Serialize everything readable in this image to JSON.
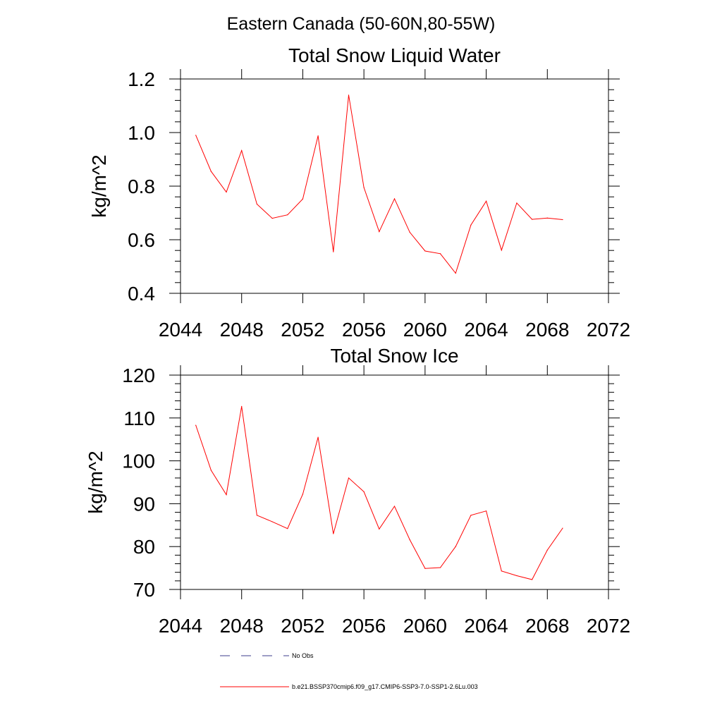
{
  "figure": {
    "title": "Eastern Canada (50-60N,80-55W)"
  },
  "chart_data": [
    {
      "type": "line",
      "title": "Total Snow Liquid Water",
      "xlabel": "",
      "ylabel": "kg/m^2",
      "xlim": [
        2044,
        2072
      ],
      "ylim": [
        0.4,
        1.2
      ],
      "xticks": [
        2044,
        2048,
        2052,
        2056,
        2060,
        2064,
        2068,
        2072
      ],
      "xtick_labels": [
        "2044",
        "2048",
        "2052",
        "2056",
        "2060",
        "2064",
        "2068",
        "2072"
      ],
      "yticks": [
        0.4,
        0.6,
        0.8,
        1.0,
        1.2
      ],
      "ytick_labels": [
        "0.4",
        "0.6",
        "0.8",
        "1.0",
        "1.2"
      ],
      "grid": false,
      "x": [
        2045,
        2046,
        2047,
        2048,
        2049,
        2050,
        2051,
        2052,
        2053,
        2054,
        2055,
        2056,
        2057,
        2058,
        2059,
        2060,
        2061,
        2062,
        2063,
        2064,
        2065,
        2066,
        2067,
        2068,
        2069
      ],
      "series": [
        {
          "name": "b.e21.BSSP370cmip6.f09_g17.CMIP6-SSP3-7.0-SSP1-2.6Lu.003",
          "color": "#ff0000",
          "values": [
            0.99,
            0.855,
            0.778,
            0.933,
            0.733,
            0.68,
            0.693,
            0.752,
            0.988,
            0.555,
            1.14,
            0.795,
            0.63,
            0.753,
            0.628,
            0.558,
            0.548,
            0.475,
            0.655,
            0.744,
            0.561,
            0.737,
            0.676,
            0.681,
            0.675
          ]
        }
      ]
    },
    {
      "type": "line",
      "title": "Total Snow Ice",
      "xlabel": "",
      "ylabel": "kg/m^2",
      "xlim": [
        2044,
        2072
      ],
      "ylim": [
        70,
        120
      ],
      "xticks": [
        2044,
        2048,
        2052,
        2056,
        2060,
        2064,
        2068,
        2072
      ],
      "xtick_labels": [
        "2044",
        "2048",
        "2052",
        "2056",
        "2060",
        "2064",
        "2068",
        "2072"
      ],
      "yticks": [
        70,
        80,
        90,
        100,
        110,
        120
      ],
      "ytick_labels": [
        "70",
        "80",
        "90",
        "100",
        "110",
        "120"
      ],
      "grid": false,
      "x": [
        2045,
        2046,
        2047,
        2048,
        2049,
        2050,
        2051,
        2052,
        2053,
        2054,
        2055,
        2056,
        2057,
        2058,
        2059,
        2060,
        2061,
        2062,
        2063,
        2064,
        2065,
        2066,
        2067,
        2068,
        2069
      ],
      "series": [
        {
          "name": "b.e21.BSSP370cmip6.f09_g17.CMIP6-SSP3-7.0-SSP1-2.6Lu.003",
          "color": "#ff0000",
          "values": [
            108.3,
            97.8,
            92.1,
            112.7,
            87.3,
            85.8,
            84.2,
            92.2,
            105.5,
            83.0,
            96.0,
            92.8,
            84.1,
            89.4,
            81.6,
            74.9,
            75.1,
            80.0,
            87.3,
            88.3,
            74.3,
            73.2,
            72.3,
            79.2,
            84.3
          ]
        }
      ]
    }
  ],
  "legend": {
    "placement": "bottom",
    "entries": [
      {
        "label": "No Obs",
        "color": "#3c3c8c",
        "style": "dashed"
      },
      {
        "label": "b.e21.BSSP370cmip6.f09_g17.CMIP6-SSP3-7.0-SSP1-2.6Lu.003",
        "color": "#ff0000",
        "style": "solid"
      }
    ]
  }
}
